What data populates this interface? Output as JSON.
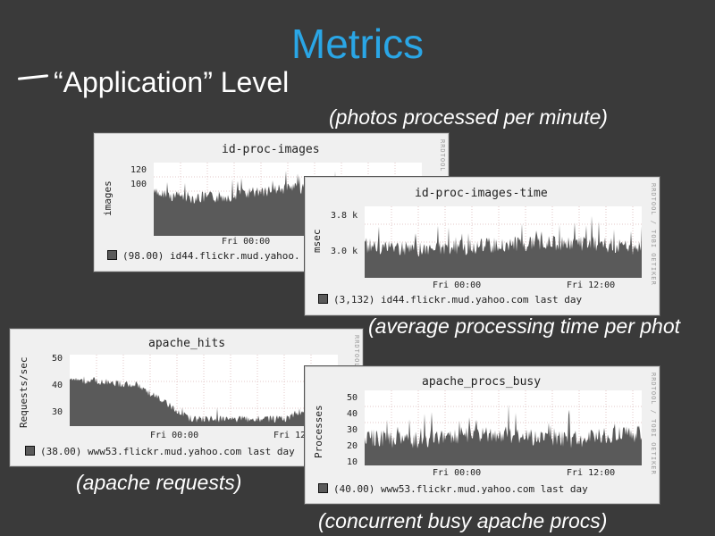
{
  "slide": {
    "title": "Metrics",
    "bullet": "“Application” Level"
  },
  "captions": {
    "photos": "(photos processed per minute)",
    "avg_time": "(average processing time per phot",
    "apache_requests": "(apache requests)",
    "busy_procs": "(concurrent busy apache procs)"
  },
  "watermark": "RRDTOOL / TOBI OETIKER",
  "graphs": {
    "images": {
      "title": "id-proc-images",
      "ylabel": "images",
      "yticks": [
        "120",
        "100"
      ],
      "xticks": [
        "Fri 00:00"
      ],
      "legend": "(98.00) id44.flickr.mud.yahoo.",
      "watermark": "RRDTOOL"
    },
    "images_time": {
      "title": "id-proc-images-time",
      "ylabel": "msec",
      "yticks": [
        "3.8 k",
        "3.0 k"
      ],
      "xticks": [
        "Fri 00:00",
        "Fri 12:00"
      ],
      "legend": "(3,132) id44.flickr.mud.yahoo.com last day",
      "watermark": "RRDTOOL / TOBI OETIKER"
    },
    "apache_hits": {
      "title": "apache_hits",
      "ylabel": "Requests/sec",
      "yticks": [
        "50",
        "40",
        "30"
      ],
      "xticks": [
        "Fri 00:00",
        "Fri 12"
      ],
      "legend": "(38.00) www53.flickr.mud.yahoo.com last day",
      "watermark": "RRDTOOL"
    },
    "apache_procs": {
      "title": "apache_procs_busy",
      "ylabel": "Processes",
      "yticks": [
        "50",
        "40",
        "30",
        "20",
        "10"
      ],
      "xticks": [
        "Fri 00:00",
        "Fri 12:00"
      ],
      "legend": "(40.00) www53.flickr.mud.yahoo.com last day",
      "watermark": "RRDTOOL / TOBI OETIKER"
    }
  },
  "colors": {
    "title": "#2aa6e6",
    "series_fill": "#5a5a5a",
    "background": "#3a3a3a"
  }
}
